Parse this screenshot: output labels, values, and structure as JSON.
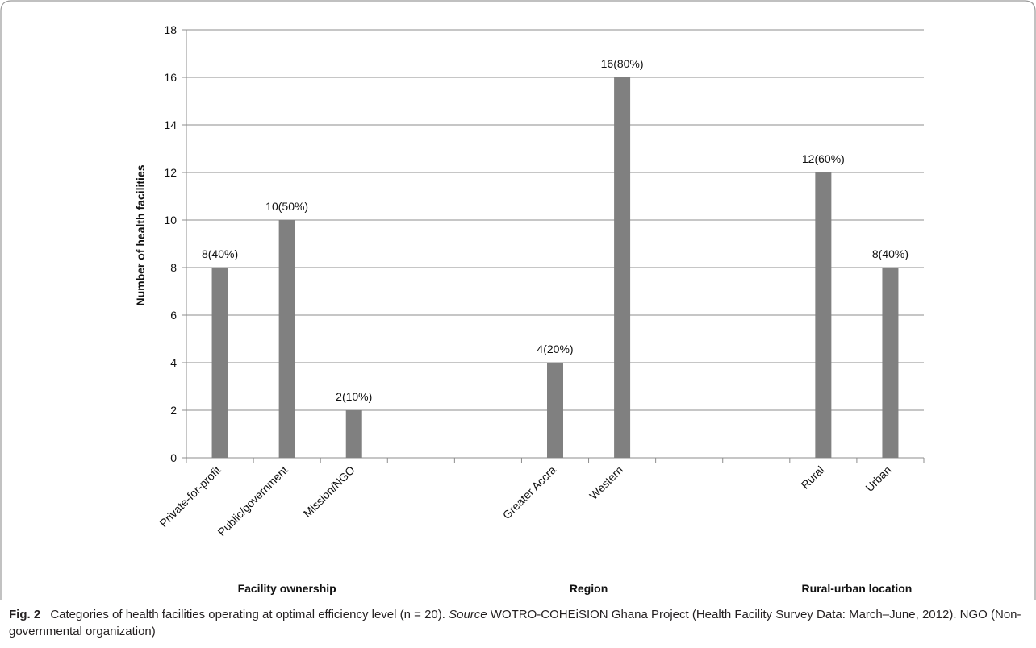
{
  "chart_data": {
    "type": "bar",
    "ylabel": "Number of health facilities",
    "ylim": [
      0,
      18
    ],
    "yticks": [
      0,
      2,
      4,
      6,
      8,
      10,
      12,
      14,
      16,
      18
    ],
    "grid": true,
    "bar_color": "#808080",
    "groups": [
      {
        "label": "Facility ownership",
        "categories": [
          "Private-for-profit",
          "Public/government",
          "Mission/NGO"
        ],
        "values": [
          8,
          10,
          2
        ],
        "data_labels": [
          "8(40%)",
          "10(50%)",
          "2(10%)"
        ]
      },
      {
        "label": "Region",
        "categories": [
          "Greater Accra",
          "Western"
        ],
        "values": [
          4,
          16
        ],
        "data_labels": [
          "4(20%)",
          "16(80%)"
        ]
      },
      {
        "label": "Rural-urban location",
        "categories": [
          "Rural",
          "Urban"
        ],
        "values": [
          12,
          8
        ],
        "data_labels": [
          "12(60%)",
          "8(40%)"
        ]
      }
    ]
  },
  "caption": {
    "fig_label": "Fig. 2",
    "text_before_source": "Categories of health facilities operating at optimal efficiency level (n = 20).",
    "source_word": "Source",
    "text_after_source": "WOTRO-COHEiSION Ghana Project (Health Facility Survey Data: March–June, 2012). NGO (Non-governmental organization)"
  }
}
